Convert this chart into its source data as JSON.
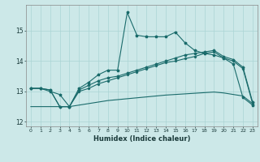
{
  "xlabel": "Humidex (Indice chaleur)",
  "bg_color": "#cce8e8",
  "line_color": "#1a6b6b",
  "xlim": [
    -0.5,
    23.5
  ],
  "ylim": [
    11.85,
    15.85
  ],
  "xticks": [
    0,
    1,
    2,
    3,
    4,
    5,
    6,
    7,
    8,
    9,
    10,
    11,
    12,
    13,
    14,
    15,
    16,
    17,
    18,
    19,
    20,
    21,
    22,
    23
  ],
  "yticks": [
    12,
    13,
    14,
    15
  ],
  "grid_color": "#aad4d4",
  "series": {
    "line1_x": [
      0,
      1,
      2,
      3,
      4,
      5,
      6,
      7,
      8,
      9,
      10,
      11,
      12,
      13,
      14,
      15,
      16,
      17,
      18,
      19,
      20,
      21,
      22,
      23
    ],
    "line1_y": [
      13.1,
      13.1,
      13.0,
      12.9,
      12.5,
      13.1,
      13.3,
      13.55,
      13.7,
      13.7,
      15.6,
      14.85,
      14.8,
      14.8,
      14.8,
      14.95,
      14.6,
      14.35,
      14.25,
      14.2,
      14.1,
      13.9,
      12.8,
      12.55
    ],
    "line2_x": [
      0,
      1,
      2,
      3,
      4,
      5,
      6,
      7,
      8,
      9,
      10,
      11,
      12,
      13,
      14,
      15,
      16,
      17,
      18,
      19,
      20,
      21,
      22,
      23
    ],
    "line2_y": [
      13.1,
      13.1,
      13.05,
      12.5,
      12.5,
      13.05,
      13.2,
      13.35,
      13.45,
      13.5,
      13.6,
      13.7,
      13.8,
      13.9,
      14.0,
      14.1,
      14.2,
      14.25,
      14.3,
      14.35,
      14.15,
      14.05,
      13.8,
      12.65
    ],
    "line3_x": [
      0,
      1,
      2,
      3,
      4,
      5,
      6,
      7,
      8,
      9,
      10,
      11,
      12,
      13,
      14,
      15,
      16,
      17,
      18,
      19,
      20,
      21,
      22,
      23
    ],
    "line3_y": [
      13.1,
      13.1,
      13.05,
      12.5,
      12.5,
      13.0,
      13.1,
      13.25,
      13.35,
      13.45,
      13.55,
      13.65,
      13.75,
      13.85,
      13.95,
      14.0,
      14.08,
      14.15,
      14.25,
      14.3,
      14.1,
      14.0,
      13.75,
      12.6
    ],
    "line4_x": [
      0,
      1,
      2,
      3,
      4,
      5,
      6,
      7,
      8,
      9,
      10,
      11,
      12,
      13,
      14,
      15,
      16,
      17,
      18,
      19,
      20,
      21,
      22,
      23
    ],
    "line4_y": [
      12.5,
      12.5,
      12.5,
      12.5,
      12.5,
      12.55,
      12.6,
      12.65,
      12.7,
      12.73,
      12.76,
      12.79,
      12.82,
      12.85,
      12.88,
      12.9,
      12.92,
      12.94,
      12.96,
      12.98,
      12.95,
      12.9,
      12.85,
      12.6
    ]
  }
}
